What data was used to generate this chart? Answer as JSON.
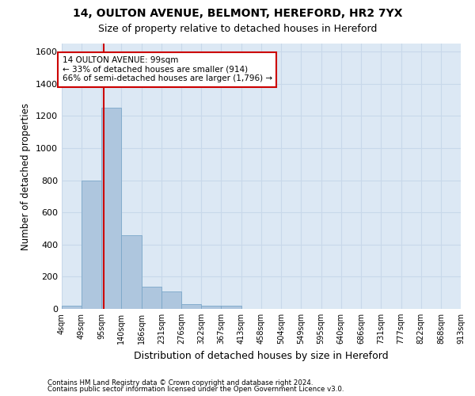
{
  "title1": "14, OULTON AVENUE, BELMONT, HEREFORD, HR2 7YX",
  "title2": "Size of property relative to detached houses in Hereford",
  "xlabel": "Distribution of detached houses by size in Hereford",
  "ylabel": "Number of detached properties",
  "footnote1": "Contains HM Land Registry data © Crown copyright and database right 2024.",
  "footnote2": "Contains public sector information licensed under the Open Government Licence v3.0.",
  "bar_edges": [
    4,
    49,
    95,
    140,
    186,
    231,
    276,
    322,
    367,
    413,
    458,
    504,
    549,
    595,
    640,
    686,
    731,
    777,
    822,
    868,
    913
  ],
  "bar_heights": [
    20,
    800,
    1250,
    460,
    140,
    110,
    30,
    20,
    20,
    0,
    0,
    0,
    0,
    0,
    0,
    0,
    0,
    0,
    0,
    0
  ],
  "bar_color": "#aec6de",
  "bar_edge_color": "#7ba7c9",
  "grid_color": "#c8d8ea",
  "bg_color": "#dce8f4",
  "vline_x": 99,
  "vline_color": "#cc0000",
  "annotation_text": "14 OULTON AVENUE: 99sqm\n← 33% of detached houses are smaller (914)\n66% of semi-detached houses are larger (1,796) →",
  "annotation_box_color": "#cc0000",
  "ylim": [
    0,
    1650
  ],
  "yticks": [
    0,
    200,
    400,
    600,
    800,
    1000,
    1200,
    1400,
    1600
  ],
  "tick_labels": [
    "4sqm",
    "49sqm",
    "95sqm",
    "140sqm",
    "186sqm",
    "231sqm",
    "276sqm",
    "322sqm",
    "367sqm",
    "413sqm",
    "458sqm",
    "504sqm",
    "549sqm",
    "595sqm",
    "640sqm",
    "686sqm",
    "731sqm",
    "777sqm",
    "822sqm",
    "868sqm",
    "913sqm"
  ]
}
